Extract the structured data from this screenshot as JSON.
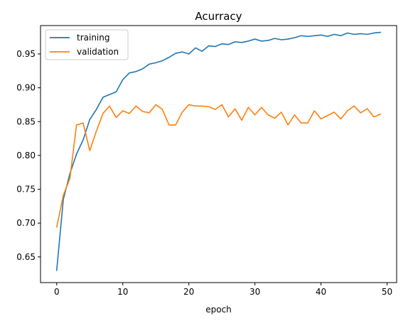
{
  "chart_data": {
    "type": "line",
    "title": "Acurracy",
    "xlabel": "epoch",
    "ylabel": "",
    "xlim": [
      -2.45,
      51.45
    ],
    "ylim": [
      0.612,
      0.992
    ],
    "xticks": [
      0,
      10,
      20,
      30,
      40,
      50
    ],
    "yticks": [
      0.65,
      0.7,
      0.75,
      0.8,
      0.85,
      0.9,
      0.95
    ],
    "grid": false,
    "legend_position": "upper-left",
    "x": [
      0,
      1,
      2,
      3,
      4,
      5,
      6,
      7,
      8,
      9,
      10,
      11,
      12,
      13,
      14,
      15,
      16,
      17,
      18,
      19,
      20,
      21,
      22,
      23,
      24,
      25,
      26,
      27,
      28,
      29,
      30,
      31,
      32,
      33,
      34,
      35,
      36,
      37,
      38,
      39,
      40,
      41,
      42,
      43,
      44,
      45,
      46,
      47,
      48,
      49
    ],
    "series": [
      {
        "name": "training",
        "color": "#1f77b4",
        "values": [
          0.63,
          0.735,
          0.773,
          0.802,
          0.823,
          0.853,
          0.868,
          0.886,
          0.89,
          0.894,
          0.912,
          0.922,
          0.924,
          0.928,
          0.935,
          0.937,
          0.94,
          0.945,
          0.951,
          0.953,
          0.95,
          0.959,
          0.954,
          0.962,
          0.961,
          0.965,
          0.964,
          0.968,
          0.967,
          0.969,
          0.972,
          0.969,
          0.97,
          0.973,
          0.971,
          0.972,
          0.974,
          0.977,
          0.976,
          0.977,
          0.978,
          0.976,
          0.979,
          0.977,
          0.981,
          0.979,
          0.98,
          0.979,
          0.981,
          0.982
        ]
      },
      {
        "name": "validation",
        "color": "#ff7f0e",
        "values": [
          0.694,
          0.741,
          0.766,
          0.845,
          0.848,
          0.807,
          0.836,
          0.862,
          0.873,
          0.856,
          0.866,
          0.862,
          0.873,
          0.865,
          0.863,
          0.875,
          0.868,
          0.845,
          0.845,
          0.864,
          0.875,
          0.873,
          0.873,
          0.872,
          0.868,
          0.875,
          0.857,
          0.869,
          0.852,
          0.871,
          0.86,
          0.871,
          0.86,
          0.855,
          0.864,
          0.845,
          0.86,
          0.848,
          0.848,
          0.866,
          0.854,
          0.859,
          0.864,
          0.854,
          0.866,
          0.873,
          0.863,
          0.869,
          0.857,
          0.861
        ]
      }
    ]
  }
}
